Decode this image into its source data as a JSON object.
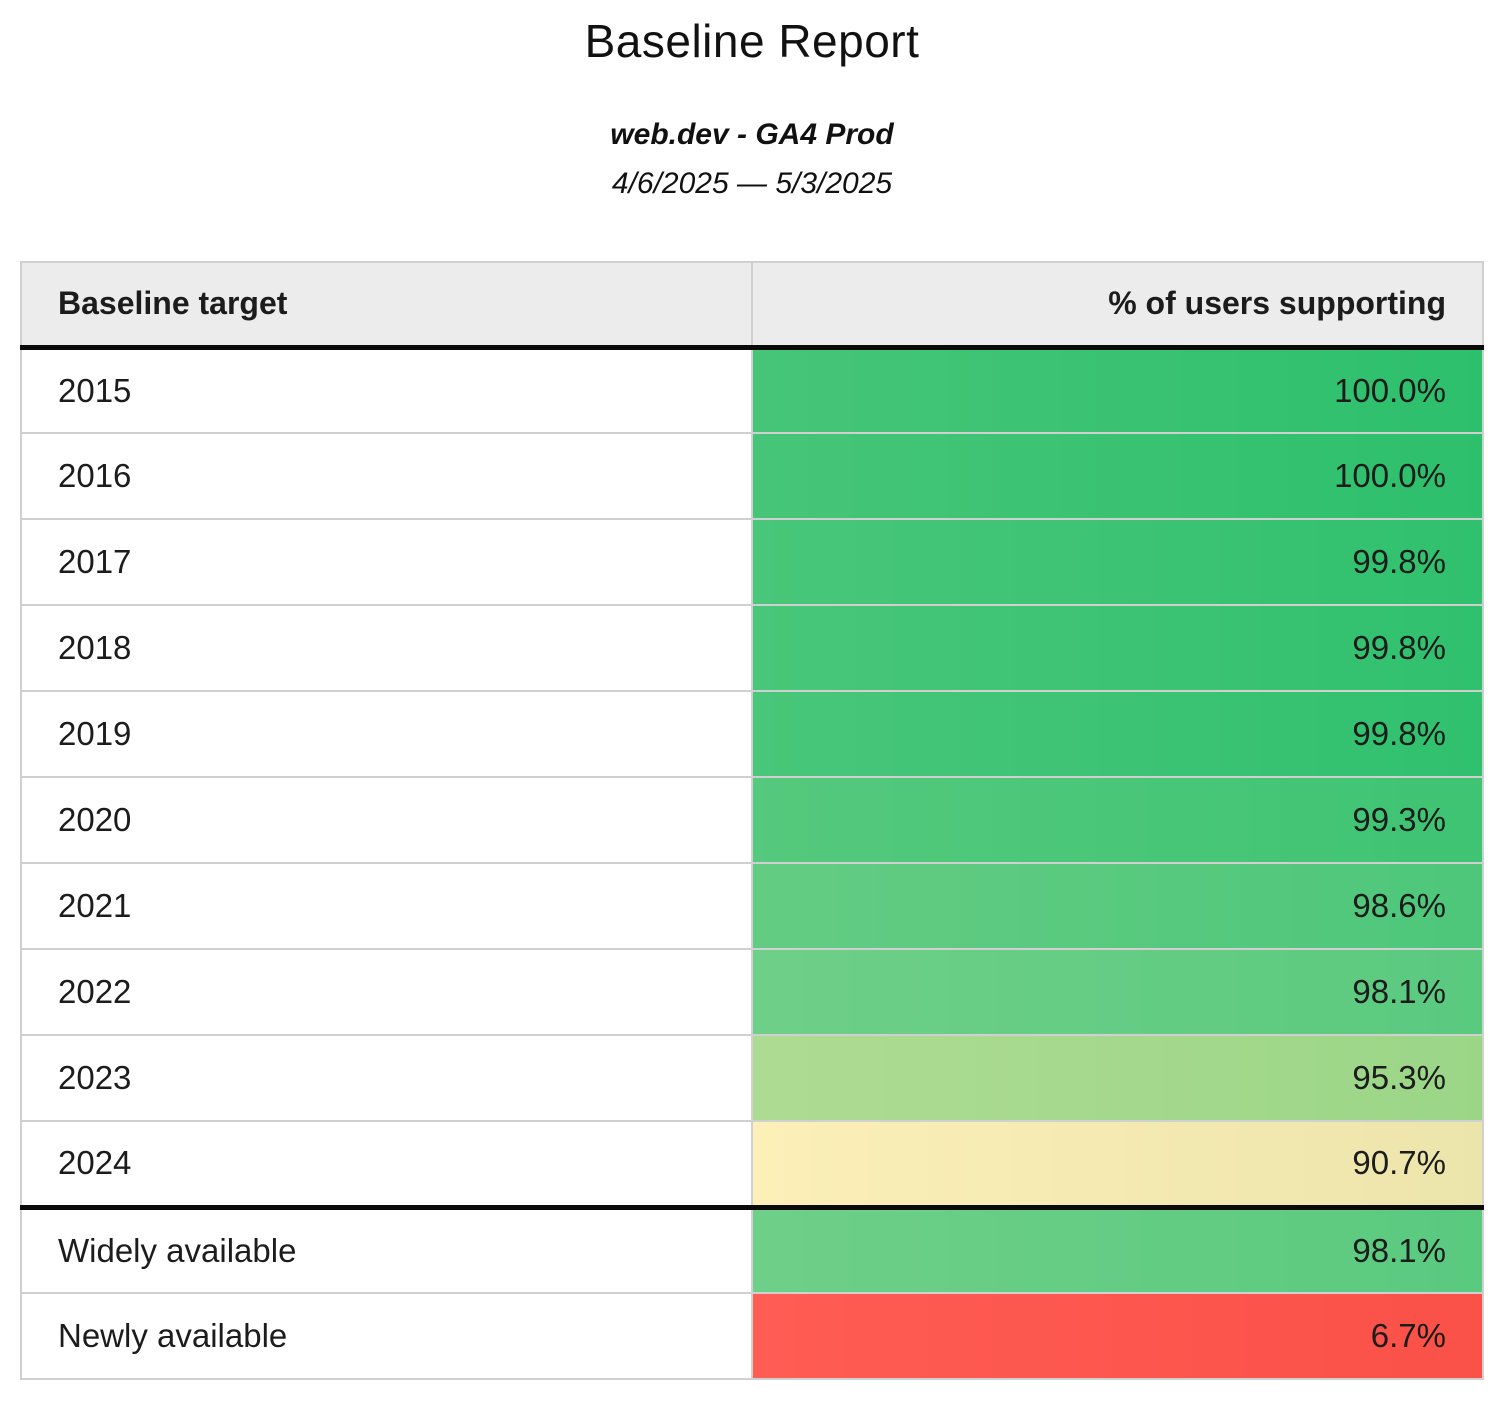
{
  "header": {
    "title": "Baseline Report",
    "subtitle": "web.dev - GA4 Prod",
    "date_range": "4/6/2025 — 5/3/2025"
  },
  "table": {
    "columns": [
      "Baseline target",
      "% of users supporting"
    ],
    "rows": [
      {
        "label": "2015",
        "value": "100.0%",
        "group": "year",
        "bg_from": "#46c578",
        "bg_to": "#2dc06c"
      },
      {
        "label": "2016",
        "value": "100.0%",
        "group": "year",
        "bg_from": "#46c578",
        "bg_to": "#2dc06c"
      },
      {
        "label": "2017",
        "value": "99.8%",
        "group": "year",
        "bg_from": "#48c679",
        "bg_to": "#30c16e"
      },
      {
        "label": "2018",
        "value": "99.8%",
        "group": "year",
        "bg_from": "#48c679",
        "bg_to": "#30c16e"
      },
      {
        "label": "2019",
        "value": "99.8%",
        "group": "year",
        "bg_from": "#48c679",
        "bg_to": "#30c16e"
      },
      {
        "label": "2020",
        "value": "99.3%",
        "group": "year",
        "bg_from": "#55c97d",
        "bg_to": "#3ec473"
      },
      {
        "label": "2021",
        "value": "98.6%",
        "group": "year",
        "bg_from": "#63cc83",
        "bg_to": "#4ec77a"
      },
      {
        "label": "2022",
        "value": "98.1%",
        "group": "year",
        "bg_from": "#6ecf88",
        "bg_to": "#5aca7f"
      },
      {
        "label": "2023",
        "value": "95.3%",
        "group": "year",
        "bg_from": "#aedb92",
        "bg_to": "#9bd687"
      },
      {
        "label": "2024",
        "value": "90.7%",
        "group": "year",
        "bg_from": "#fcefb8",
        "bg_to": "#ece5ab"
      },
      {
        "label": "Widely available",
        "value": "98.1%",
        "group": "aggregate",
        "bg_from": "#6ecf88",
        "bg_to": "#5aca7f"
      },
      {
        "label": "Newly available",
        "value": "6.7%",
        "group": "aggregate",
        "bg_from": "#ff5c54",
        "bg_to": "#fa5148"
      }
    ]
  },
  "colors": {
    "header_bg": "#ececec",
    "divider_gray": "#d0d0d0",
    "outer_border": "#c6c6c6",
    "section_border": "#0a0a0a",
    "green_high": "#2dc06c",
    "green_mid": "#6ecf88",
    "green_low": "#aedb92",
    "yellow": "#fcefb8",
    "red": "#ff5c54",
    "text": "#1c1c1c"
  },
  "chart_data": {
    "type": "table",
    "title": "Baseline Report",
    "subtitle": "web.dev - GA4 Prod",
    "date_range": "4/6/2025 — 5/3/2025",
    "columns": [
      "Baseline target",
      "% of users supporting"
    ],
    "categories": [
      "2015",
      "2016",
      "2017",
      "2018",
      "2019",
      "2020",
      "2021",
      "2022",
      "2023",
      "2024",
      "Widely available",
      "Newly available"
    ],
    "values": [
      100.0,
      100.0,
      99.8,
      99.8,
      99.8,
      99.3,
      98.6,
      98.1,
      95.3,
      90.7,
      98.1,
      6.7
    ],
    "value_unit": "percent",
    "layout_hints": "two-column table, value column cells colored by green-yellow-red scale, values right-aligned, thick black rule under header and between year rows and availability rows"
  }
}
